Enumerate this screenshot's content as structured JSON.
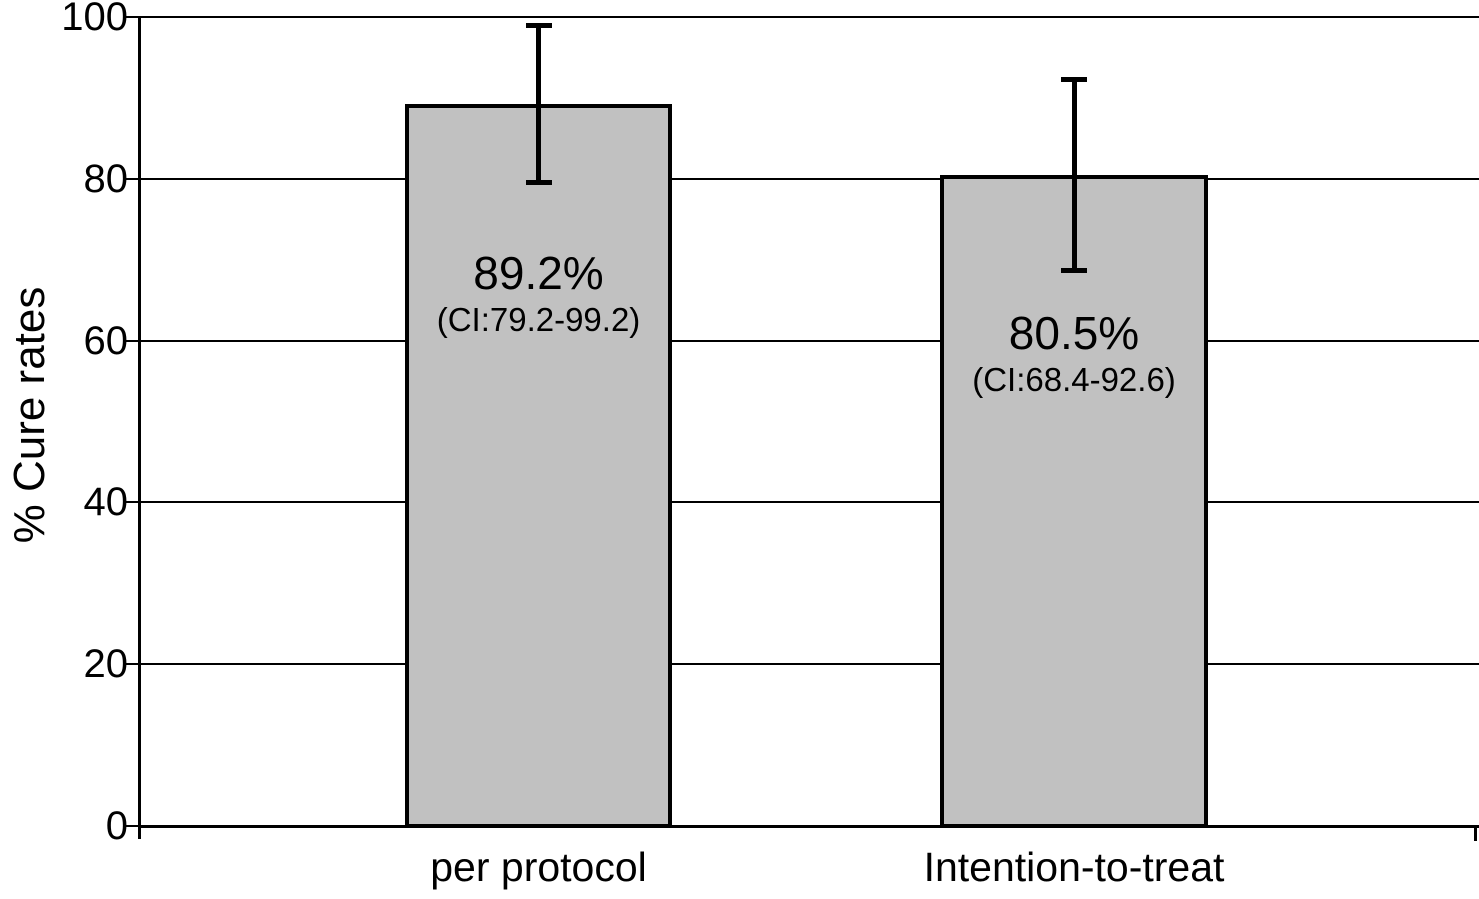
{
  "chart_data": {
    "type": "bar",
    "title": "",
    "xlabel": "",
    "ylabel": "% Cure rates",
    "categories": [
      "per protocol",
      "Intention-to-treat"
    ],
    "values": [
      89.2,
      80.5
    ],
    "value_labels": [
      "89.2%",
      "80.5%"
    ],
    "ci_labels": [
      "(CI:79.2-99.2)",
      "(CI:68.4-92.6)"
    ],
    "error_bars": [
      {
        "low": 79.2,
        "high": 99.2
      },
      {
        "low": 68.4,
        "high": 92.6
      }
    ],
    "ylim": [
      0,
      100
    ],
    "yticks": [
      0,
      20,
      40,
      60,
      80,
      100
    ],
    "grid": true,
    "legend": false,
    "bar_fill_color": "#c1c1c1",
    "bar_border_color": "#000000",
    "axis_color": "#000000",
    "text_color": "#000000",
    "background_color": "#ffffff"
  }
}
